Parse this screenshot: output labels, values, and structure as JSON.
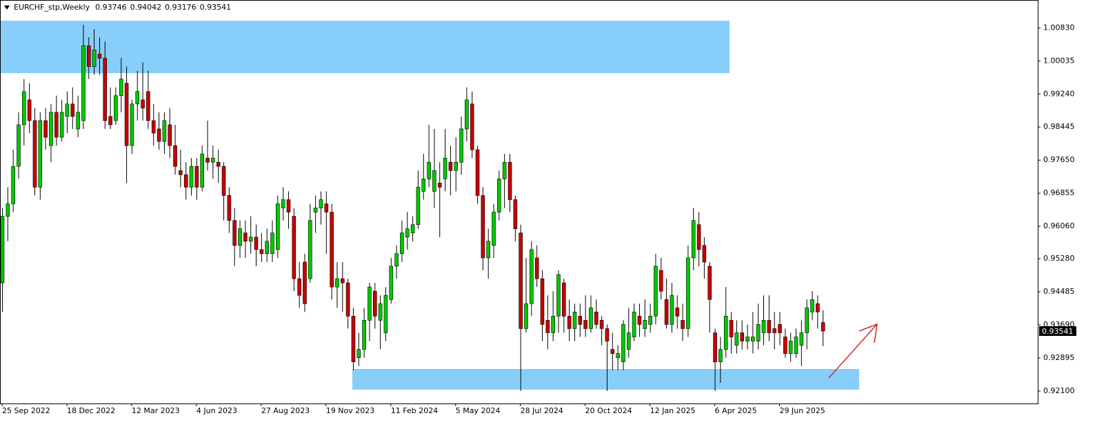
{
  "chart_data": {
    "type": "candlestick",
    "title": "EURCHF_stp,Weekly",
    "categories": [
      "25 Sep 2022",
      null,
      null,
      null,
      null,
      null,
      null,
      null,
      null,
      null,
      null,
      null,
      "18 Dec 2022",
      null,
      null,
      null,
      null,
      null,
      null,
      null,
      null,
      null,
      null,
      null,
      "12 Mar 2023",
      null,
      null,
      null,
      null,
      null,
      null,
      null,
      null,
      null,
      null,
      null,
      "4 Jun 2023",
      null,
      null,
      null,
      null,
      null,
      null,
      null,
      null,
      null,
      null,
      null,
      "27 Aug 2023",
      null,
      null,
      null,
      null,
      null,
      null,
      null,
      null,
      null,
      null,
      null,
      "19 Nov 2023",
      null,
      null,
      null,
      null,
      null,
      null,
      null,
      null,
      null,
      null,
      null,
      "11 Feb 2024",
      null,
      null,
      null,
      null,
      null,
      null,
      null,
      null,
      null,
      null,
      null,
      "5 May 2024",
      null,
      null,
      null,
      null,
      null,
      null,
      null,
      null,
      null,
      null,
      null,
      "28 Jul 2024",
      null,
      null,
      null,
      null,
      null,
      null,
      null,
      null,
      null,
      null,
      null,
      "20 Oct 2024",
      null,
      null,
      null,
      null,
      null,
      null,
      null,
      null,
      null,
      null,
      null,
      "12 Jan 2025",
      null,
      null,
      null,
      null,
      null,
      null,
      null,
      null,
      null,
      null,
      null,
      "6 Apr 2025",
      null,
      null,
      null,
      null,
      null,
      null,
      null,
      null,
      null,
      null,
      null,
      "29 Jun 2025",
      null,
      null,
      null,
      null,
      null,
      null,
      null,
      null
    ],
    "open": [
      0.947,
      0.963,
      0.966,
      0.975,
      0.985,
      0.991,
      0.986,
      0.97,
      0.986,
      0.98,
      0.988,
      0.982,
      0.987,
      0.99,
      0.984,
      0.986,
      1.004,
      0.999,
      1.002,
      1.001,
      0.987,
      0.986,
      0.992,
      0.995,
      0.98,
      0.99,
      0.991,
      0.993,
      0.986,
      0.984,
      0.981,
      0.985,
      0.98,
      0.974,
      0.973,
      0.97,
      0.975,
      0.97,
      0.977,
      0.976,
      0.976,
      0.975,
      0.968,
      0.962,
      0.956,
      0.959,
      0.957,
      0.958,
      0.955,
      0.954,
      0.954,
      0.955,
      0.965,
      0.967,
      0.963,
      0.948,
      0.952,
      0.948,
      0.964,
      0.965,
      0.966,
      0.964,
      0.946,
      0.948,
      0.947,
      0.939,
      0.929,
      0.931,
      0.938,
      0.945,
      0.938,
      0.935,
      0.943,
      0.951,
      0.954,
      0.958,
      0.959,
      0.961,
      0.969,
      0.972,
      0.969,
      0.971,
      0.972,
      0.976,
      0.974,
      0.976,
      0.984,
      0.99,
      0.979,
      0.968,
      0.953,
      0.956,
      0.964,
      0.972,
      0.976,
      0.967,
      0.959,
      0.936,
      0.942,
      0.953,
      0.948,
      0.938,
      0.935,
      0.939,
      0.947,
      0.939,
      0.936,
      0.939,
      0.938,
      0.936,
      0.94,
      0.938,
      0.936,
      0.931,
      0.929,
      0.928,
      0.931,
      0.934,
      0.939,
      0.936,
      0.937,
      0.939,
      0.95,
      0.943,
      0.937,
      0.941,
      0.938,
      0.936,
      0.953,
      0.961,
      0.956,
      0.951,
      0.935,
      0.928,
      0.931,
      0.938,
      0.932,
      0.935,
      0.933,
      0.933,
      0.933,
      0.935,
      0.938,
      0.936,
      0.937,
      0.934,
      0.93,
      0.93,
      0.932,
      0.935,
      0.94,
      0.942,
      0.93746
    ],
    "high": [
      0.965,
      0.97,
      0.979,
      0.988,
      0.996,
      0.995,
      0.989,
      0.988,
      0.989,
      0.99,
      0.992,
      0.991,
      0.993,
      0.994,
      0.992,
      1.009,
      1.006,
      1.008,
      1.006,
      1.005,
      0.994,
      0.994,
      1.001,
      0.999,
      0.991,
      0.998,
      1.0,
      0.998,
      0.99,
      0.988,
      0.988,
      0.989,
      0.985,
      0.979,
      0.976,
      0.977,
      0.977,
      0.98,
      0.986,
      0.98,
      0.979,
      0.976,
      0.97,
      0.965,
      0.962,
      0.962,
      0.963,
      0.961,
      0.959,
      0.96,
      0.962,
      0.968,
      0.97,
      0.969,
      0.965,
      0.952,
      0.954,
      0.966,
      0.968,
      0.969,
      0.969,
      0.966,
      0.952,
      0.952,
      0.948,
      0.941,
      0.935,
      0.941,
      0.947,
      0.947,
      0.944,
      0.946,
      0.953,
      0.956,
      0.962,
      0.964,
      0.963,
      0.974,
      0.978,
      0.985,
      0.984,
      0.976,
      0.984,
      0.98,
      0.982,
      0.987,
      0.994,
      0.993,
      0.98,
      0.97,
      0.96,
      0.966,
      0.974,
      0.978,
      0.978,
      0.968,
      0.961,
      0.953,
      0.957,
      0.956,
      0.95,
      0.944,
      0.945,
      0.95,
      0.948,
      0.943,
      0.942,
      0.942,
      0.944,
      0.944,
      0.943,
      0.939,
      0.937,
      0.935,
      0.932,
      0.938,
      0.941,
      0.942,
      0.942,
      0.943,
      0.942,
      0.954,
      0.953,
      0.948,
      0.947,
      0.944,
      0.942,
      0.956,
      0.965,
      0.964,
      0.958,
      0.952,
      0.936,
      0.934,
      0.946,
      0.94,
      0.938,
      0.938,
      0.937,
      0.94,
      0.942,
      0.944,
      0.944,
      0.94,
      0.94,
      0.936,
      0.935,
      0.936,
      0.938,
      0.943,
      0.945,
      0.944,
      0.94042
    ],
    "low": [
      0.94,
      0.957,
      0.964,
      0.972,
      0.98,
      0.983,
      0.968,
      0.967,
      0.979,
      0.976,
      0.98,
      0.981,
      0.983,
      0.984,
      0.982,
      0.984,
      0.996,
      0.997,
      0.997,
      0.984,
      0.984,
      0.985,
      0.988,
      0.971,
      0.978,
      0.986,
      0.986,
      0.984,
      0.98,
      0.979,
      0.978,
      0.977,
      0.973,
      0.97,
      0.967,
      0.968,
      0.967,
      0.969,
      0.974,
      0.972,
      0.971,
      0.962,
      0.959,
      0.951,
      0.953,
      0.953,
      0.954,
      0.951,
      0.952,
      0.952,
      0.952,
      0.953,
      0.962,
      0.96,
      0.945,
      0.941,
      0.94,
      0.947,
      0.959,
      0.961,
      0.954,
      0.943,
      0.941,
      0.94,
      0.936,
      0.926,
      0.927,
      0.929,
      0.933,
      0.936,
      0.931,
      0.933,
      0.942,
      0.948,
      0.952,
      0.955,
      0.957,
      0.96,
      0.967,
      0.97,
      0.965,
      0.958,
      0.969,
      0.968,
      0.969,
      0.973,
      0.981,
      0.977,
      0.966,
      0.95,
      0.948,
      0.953,
      0.962,
      0.965,
      0.964,
      0.957,
      0.921,
      0.935,
      0.939,
      0.946,
      0.933,
      0.931,
      0.933,
      0.935,
      0.935,
      0.933,
      0.933,
      0.934,
      0.934,
      0.935,
      0.936,
      0.932,
      0.921,
      0.926,
      0.926,
      0.926,
      0.929,
      0.933,
      0.934,
      0.934,
      0.935,
      0.937,
      0.943,
      0.936,
      0.935,
      0.936,
      0.933,
      0.934,
      0.95,
      0.951,
      0.948,
      0.935,
      0.921,
      0.923,
      0.929,
      0.93,
      0.93,
      0.931,
      0.931,
      0.93,
      0.931,
      0.932,
      0.933,
      0.931,
      0.932,
      0.929,
      0.928,
      0.929,
      0.927,
      0.931,
      0.938,
      0.936,
      0.93176
    ],
    "close": [
      0.963,
      0.966,
      0.975,
      0.985,
      0.993,
      0.986,
      0.97,
      0.986,
      0.982,
      0.988,
      0.982,
      0.988,
      0.99,
      0.987,
      0.988,
      1.004,
      0.999,
      1.003,
      1.001,
      0.986,
      0.985,
      0.992,
      0.996,
      0.98,
      0.99,
      0.993,
      0.989,
      0.986,
      0.983,
      0.981,
      0.986,
      0.98,
      0.975,
      0.973,
      0.97,
      0.975,
      0.97,
      0.978,
      0.976,
      0.977,
      0.975,
      0.968,
      0.962,
      0.956,
      0.96,
      0.957,
      0.958,
      0.955,
      0.954,
      0.957,
      0.959,
      0.966,
      0.967,
      0.964,
      0.948,
      0.944,
      0.942,
      0.962,
      0.965,
      0.967,
      0.964,
      0.946,
      0.948,
      0.947,
      0.939,
      0.928,
      0.931,
      0.938,
      0.946,
      0.939,
      0.942,
      0.944,
      0.951,
      0.954,
      0.959,
      0.96,
      0.961,
      0.97,
      0.972,
      0.976,
      0.974,
      0.97,
      0.977,
      0.974,
      0.976,
      0.984,
      0.991,
      0.979,
      0.968,
      0.953,
      0.957,
      0.964,
      0.972,
      0.976,
      0.967,
      0.96,
      0.936,
      0.942,
      0.955,
      0.948,
      0.937,
      0.935,
      0.939,
      0.949,
      0.939,
      0.936,
      0.94,
      0.937,
      0.936,
      0.941,
      0.937,
      0.936,
      0.933,
      0.93,
      0.93,
      0.937,
      0.935,
      0.94,
      0.937,
      0.938,
      0.939,
      0.951,
      0.945,
      0.937,
      0.944,
      0.939,
      0.936,
      0.953,
      0.962,
      0.955,
      0.952,
      0.943,
      0.928,
      0.931,
      0.939,
      0.934,
      0.935,
      0.933,
      0.934,
      0.934,
      0.937,
      0.938,
      0.935,
      0.935,
      0.935,
      0.93,
      0.933,
      0.934,
      0.935,
      0.941,
      0.943,
      0.94,
      0.93541
    ],
    "up_color": "#00c800",
    "down_color": "#c80000",
    "ylim": [
      0.918,
      1.015
    ],
    "yticks": [
      {
        "value": 1.0083,
        "label": "1.00830"
      },
      1.00035,
      {
        "value": 0.9924,
        "label": "0.99240"
      },
      0.98445,
      {
        "value": 0.9765,
        "label": "0.97650"
      },
      0.96855,
      {
        "value": 0.9606,
        "label": "0.96060"
      },
      {
        "value": 0.9528,
        "label": "0.95280"
      },
      0.94485,
      {
        "value": 0.9369,
        "label": "0.93690"
      },
      0.92895,
      {
        "value": 0.921,
        "label": "0.92100"
      }
    ]
  }
}
